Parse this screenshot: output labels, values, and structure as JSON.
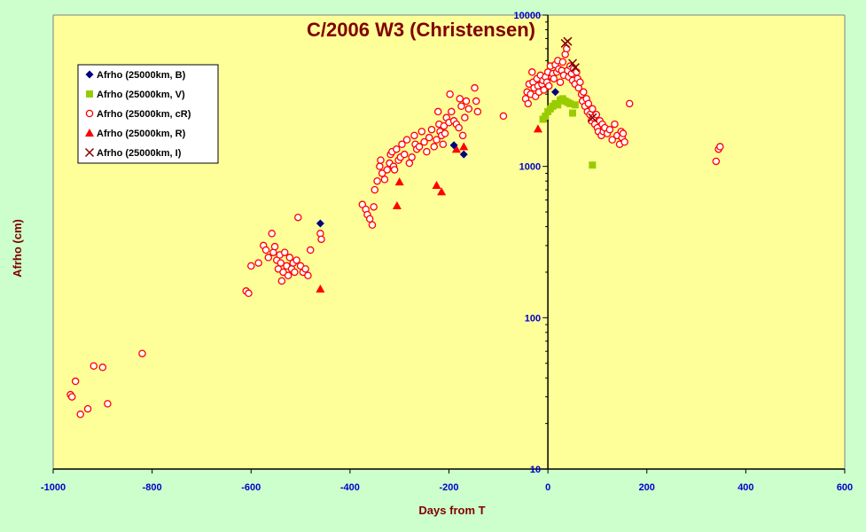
{
  "chart_data": {
    "type": "scatter",
    "title": "C/2006 W3 (Christensen)",
    "xlabel": "Days from  T",
    "ylabel": "Afrho  (cm)",
    "xlim": [
      -1000,
      600
    ],
    "ylim": [
      10,
      10000
    ],
    "yscale": "log",
    "x_ticks": [
      "-1000",
      "-800",
      "-600",
      "-400",
      "-200",
      "0",
      "200",
      "400",
      "600"
    ],
    "y_ticks": [
      "10",
      "100",
      "1000",
      "10000"
    ],
    "grid": false,
    "legend_position": "top-left",
    "colors": {
      "plot_bg": "#ffff99",
      "page_bg": "#ccffcc",
      "title": "#800000",
      "ticks": "#0000cc"
    },
    "series": [
      {
        "name": "Afrho (25000km, B)",
        "marker": "diamond",
        "color": "#000080",
        "points": [
          [
            -460,
            420
          ],
          [
            -190,
            1380
          ],
          [
            -170,
            1200
          ],
          [
            15,
            3100
          ]
        ]
      },
      {
        "name": "Afrho (25000km, V)",
        "marker": "square",
        "color": "#99cc00",
        "points": [
          [
            -10,
            2050
          ],
          [
            -5,
            2150
          ],
          [
            0,
            2300
          ],
          [
            5,
            2400
          ],
          [
            10,
            2500
          ],
          [
            15,
            2600
          ],
          [
            20,
            2550
          ],
          [
            25,
            2750
          ],
          [
            30,
            2800
          ],
          [
            35,
            2700
          ],
          [
            40,
            2650
          ],
          [
            45,
            2600
          ],
          [
            50,
            2250
          ],
          [
            55,
            2550
          ],
          [
            90,
            1020
          ]
        ]
      },
      {
        "name": "Afrho (25000km, cR)",
        "marker": "open-circle",
        "color": "#ff0000",
        "points": [
          [
            -965,
            31
          ],
          [
            -962,
            30
          ],
          [
            -955,
            38
          ],
          [
            -945,
            23
          ],
          [
            -930,
            25
          ],
          [
            -918,
            48
          ],
          [
            -900,
            47
          ],
          [
            -890,
            27
          ],
          [
            -820,
            58
          ],
          [
            -610,
            150
          ],
          [
            -605,
            145
          ],
          [
            -600,
            220
          ],
          [
            -585,
            230
          ],
          [
            -575,
            300
          ],
          [
            -570,
            280
          ],
          [
            -565,
            250
          ],
          [
            -558,
            360
          ],
          [
            -555,
            270
          ],
          [
            -552,
            295
          ],
          [
            -548,
            240
          ],
          [
            -545,
            210
          ],
          [
            -542,
            260
          ],
          [
            -540,
            230
          ],
          [
            -538,
            175
          ],
          [
            -535,
            200
          ],
          [
            -532,
            270
          ],
          [
            -528,
            220
          ],
          [
            -525,
            190
          ],
          [
            -522,
            250
          ],
          [
            -518,
            210
          ],
          [
            -515,
            230
          ],
          [
            -512,
            200
          ],
          [
            -508,
            240
          ],
          [
            -505,
            460
          ],
          [
            -500,
            220
          ],
          [
            -495,
            200
          ],
          [
            -490,
            210
          ],
          [
            -485,
            190
          ],
          [
            -480,
            280
          ],
          [
            -460,
            360
          ],
          [
            -458,
            330
          ],
          [
            -375,
            560
          ],
          [
            -368,
            520
          ],
          [
            -365,
            480
          ],
          [
            -360,
            450
          ],
          [
            -355,
            410
          ],
          [
            -352,
            540
          ],
          [
            -350,
            700
          ],
          [
            -345,
            800
          ],
          [
            -340,
            1000
          ],
          [
            -338,
            1100
          ],
          [
            -335,
            900
          ],
          [
            -330,
            820
          ],
          [
            -325,
            950
          ],
          [
            -320,
            1050
          ],
          [
            -318,
            1200
          ],
          [
            -315,
            1250
          ],
          [
            -312,
            1000
          ],
          [
            -310,
            950
          ],
          [
            -306,
            1300
          ],
          [
            -302,
            1100
          ],
          [
            -298,
            1150
          ],
          [
            -295,
            1400
          ],
          [
            -290,
            1200
          ],
          [
            -285,
            1500
          ],
          [
            -280,
            1050
          ],
          [
            -275,
            1150
          ],
          [
            -270,
            1600
          ],
          [
            -268,
            1400
          ],
          [
            -265,
            1300
          ],
          [
            -260,
            1350
          ],
          [
            -255,
            1700
          ],
          [
            -250,
            1450
          ],
          [
            -245,
            1250
          ],
          [
            -240,
            1550
          ],
          [
            -235,
            1750
          ],
          [
            -230,
            1350
          ],
          [
            -225,
            1500
          ],
          [
            -222,
            2300
          ],
          [
            -220,
            1900
          ],
          [
            -218,
            1700
          ],
          [
            -215,
            1600
          ],
          [
            -212,
            1400
          ],
          [
            -210,
            1850
          ],
          [
            -208,
            1650
          ],
          [
            -205,
            2100
          ],
          [
            -200,
            1950
          ],
          [
            -198,
            3000
          ],
          [
            -195,
            2300
          ],
          [
            -190,
            2000
          ],
          [
            -185,
            1900
          ],
          [
            -180,
            1800
          ],
          [
            -178,
            2800
          ],
          [
            -175,
            2500
          ],
          [
            -172,
            1600
          ],
          [
            -168,
            2100
          ],
          [
            -165,
            2700
          ],
          [
            -160,
            2400
          ],
          [
            -148,
            3300
          ],
          [
            -145,
            2700
          ],
          [
            -142,
            2300
          ],
          [
            -90,
            2150
          ],
          [
            -45,
            2800
          ],
          [
            -42,
            3100
          ],
          [
            -40,
            2600
          ],
          [
            -38,
            3500
          ],
          [
            -35,
            3000
          ],
          [
            -32,
            4200
          ],
          [
            -30,
            3600
          ],
          [
            -28,
            3300
          ],
          [
            -25,
            2900
          ],
          [
            -22,
            3800
          ],
          [
            -20,
            3400
          ],
          [
            -18,
            3100
          ],
          [
            -15,
            4000
          ],
          [
            -12,
            3500
          ],
          [
            -10,
            3700
          ],
          [
            -8,
            3200
          ],
          [
            -5,
            3900
          ],
          [
            -2,
            3600
          ],
          [
            0,
            4200
          ],
          [
            2,
            3400
          ],
          [
            5,
            4600
          ],
          [
            8,
            3900
          ],
          [
            10,
            4100
          ],
          [
            12,
            3800
          ],
          [
            15,
            4700
          ],
          [
            18,
            4200
          ],
          [
            20,
            5000
          ],
          [
            22,
            4400
          ],
          [
            25,
            3600
          ],
          [
            28,
            4300
          ],
          [
            30,
            4900
          ],
          [
            32,
            4000
          ],
          [
            35,
            5500
          ],
          [
            38,
            6000
          ],
          [
            40,
            4300
          ],
          [
            42,
            3900
          ],
          [
            45,
            4600
          ],
          [
            48,
            4100
          ],
          [
            50,
            3700
          ],
          [
            52,
            4400
          ],
          [
            55,
            3500
          ],
          [
            58,
            4200
          ],
          [
            60,
            3800
          ],
          [
            62,
            3300
          ],
          [
            65,
            3600
          ],
          [
            68,
            3000
          ],
          [
            70,
            2700
          ],
          [
            72,
            3100
          ],
          [
            75,
            2500
          ],
          [
            78,
            2800
          ],
          [
            80,
            2300
          ],
          [
            82,
            2600
          ],
          [
            85,
            2200
          ],
          [
            88,
            2000
          ],
          [
            90,
            2400
          ],
          [
            92,
            2100
          ],
          [
            95,
            1900
          ],
          [
            98,
            2200
          ],
          [
            100,
            1800
          ],
          [
            102,
            1700
          ],
          [
            105,
            2000
          ],
          [
            108,
            1600
          ],
          [
            110,
            1900
          ],
          [
            112,
            1700
          ],
          [
            115,
            1800
          ],
          [
            120,
            1650
          ],
          [
            125,
            1750
          ],
          [
            130,
            1500
          ],
          [
            135,
            1900
          ],
          [
            140,
            1600
          ],
          [
            145,
            1400
          ],
          [
            148,
            1700
          ],
          [
            150,
            1550
          ],
          [
            152,
            1650
          ],
          [
            155,
            1450
          ],
          [
            165,
            2600
          ],
          [
            340,
            1080
          ],
          [
            345,
            1300
          ],
          [
            348,
            1350
          ]
        ]
      },
      {
        "name": "Afrho (25000km, R)",
        "marker": "triangle",
        "color": "#ff0000",
        "points": [
          [
            -460,
            155
          ],
          [
            -305,
            550
          ],
          [
            -300,
            790
          ],
          [
            -225,
            750
          ],
          [
            -215,
            680
          ],
          [
            -185,
            1300
          ],
          [
            -170,
            1350
          ],
          [
            -20,
            1770
          ]
        ]
      },
      {
        "name": "Afrho (25000km, I)",
        "marker": "x",
        "color": "#800000",
        "points": [
          [
            35,
            6500
          ],
          [
            40,
            6700
          ],
          [
            50,
            4800
          ],
          [
            55,
            4500
          ],
          [
            90,
            2100
          ]
        ]
      }
    ]
  }
}
